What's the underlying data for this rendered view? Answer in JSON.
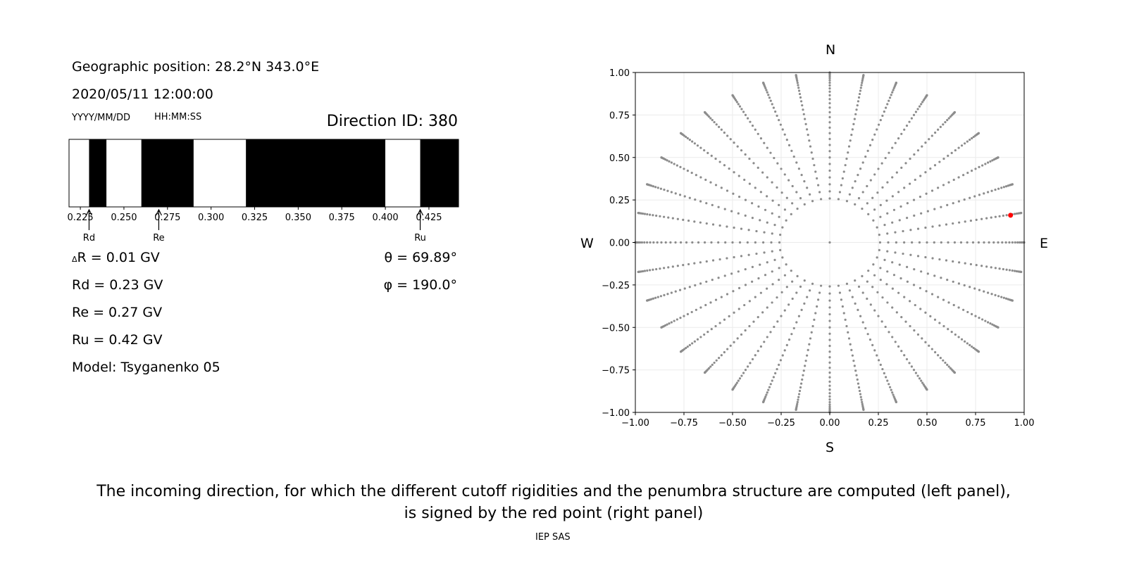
{
  "info": {
    "geo_position": "Geographic position: 28.2°N 343.0°E",
    "datetime": "2020/05/11 12:00:00",
    "date_format": "YYYY/MM/DD",
    "time_format": "HH:MM:SS",
    "direction_id": "Direction ID: 380"
  },
  "results": {
    "delta_r_symbol": "Δ",
    "delta_r": "R = 0.01 GV",
    "rd": "Rd = 0.23 GV",
    "re": "Re = 0.27 GV",
    "ru": "Ru = 0.42 GV",
    "model": "Model: Tsyganenko 05",
    "theta": "θ = 69.89°",
    "phi": "φ = 190.0°"
  },
  "compass": {
    "n": "N",
    "s": "S",
    "w": "W",
    "e": "E"
  },
  "caption": {
    "line1": "The incoming direction, for which the different cutoff rigidities and the penumbra structure are computed (left panel),",
    "line2": "is signed by the red point (right panel)",
    "credit": "IEP SAS"
  },
  "colors": {
    "allowed": "#ffffff",
    "forbidden": "#000000",
    "grid_point": "#8c8c8c",
    "selected_point": "#ff0000"
  },
  "chart_data": [
    {
      "type": "bar",
      "description": "Penumbra structure (black = forbidden, white = allowed)",
      "xlim": [
        0.2185,
        0.442
      ],
      "xticks": [
        0.225,
        0.25,
        0.275,
        0.3,
        0.325,
        0.35,
        0.375,
        0.4,
        0.425
      ],
      "xtick_labels": [
        "0.225",
        "0.250",
        "0.275",
        "0.300",
        "0.325",
        "0.350",
        "0.375",
        "0.400",
        "0.425"
      ],
      "segments": [
        {
          "from": 0.2185,
          "to": 0.23,
          "state": "allowed"
        },
        {
          "from": 0.23,
          "to": 0.24,
          "state": "forbidden"
        },
        {
          "from": 0.24,
          "to": 0.26,
          "state": "allowed"
        },
        {
          "from": 0.26,
          "to": 0.29,
          "state": "forbidden"
        },
        {
          "from": 0.29,
          "to": 0.32,
          "state": "allowed"
        },
        {
          "from": 0.32,
          "to": 0.4,
          "state": "forbidden"
        },
        {
          "from": 0.4,
          "to": 0.42,
          "state": "allowed"
        },
        {
          "from": 0.42,
          "to": 0.442,
          "state": "forbidden"
        }
      ],
      "markers": [
        {
          "label": "Rd",
          "value": 0.23
        },
        {
          "label": "Re",
          "value": 0.27
        },
        {
          "label": "Ru",
          "value": 0.42
        }
      ]
    },
    {
      "type": "scatter",
      "description": "Incoming directions (projection)",
      "xlim": [
        -1.0,
        1.0
      ],
      "ylim": [
        -1.0,
        1.0
      ],
      "xticks": [
        -1.0,
        -0.75,
        -0.5,
        -0.25,
        0.0,
        0.25,
        0.5,
        0.75,
        1.0
      ],
      "yticks": [
        -1.0,
        -0.75,
        -0.5,
        -0.25,
        0.0,
        0.25,
        0.5,
        0.75,
        1.0
      ],
      "xtick_labels": [
        "−1.00",
        "−0.75",
        "−0.50",
        "−0.25",
        "0.00",
        "0.25",
        "0.50",
        "0.75",
        "1.00"
      ],
      "ytick_labels": [
        "−1.00",
        "−0.75",
        "−0.50",
        "−0.25",
        "0.00",
        "0.25",
        "0.50",
        "0.75",
        "1.00"
      ],
      "grid": true,
      "grid_pattern": {
        "center": [
          0.0,
          0.0
        ],
        "azimuth_step_deg": 10,
        "azimuth_count": 36,
        "max_radius": 1.0,
        "radial_spacing": "denser near outer edge (radius = sin of zenith angle, zenith 15°..90°)"
      },
      "selected_point": {
        "x": 0.93,
        "y": 0.16
      }
    }
  ]
}
